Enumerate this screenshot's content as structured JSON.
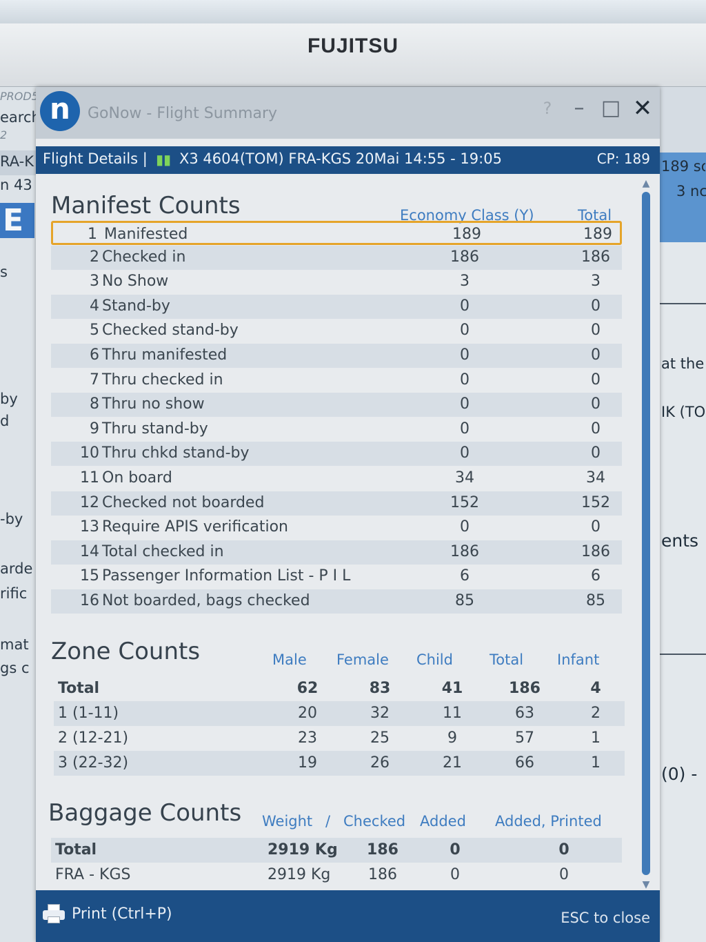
{
  "monitor": {
    "brand": "FUJITSU"
  },
  "background_left": {
    "fragments": [
      "PROD5",
      "earch",
      "2",
      "RA-K",
      "n 43",
      "E",
      "s",
      "by",
      "d",
      "-by",
      "arde",
      "rific",
      "mat",
      "gs c"
    ]
  },
  "background_right": {
    "fragments": [
      "189 so",
      "3 nc",
      "at the",
      "IK (TO",
      "ents (",
      "(0) -"
    ]
  },
  "window": {
    "logo": "n",
    "title": "GoNow - Flight Summary",
    "controls": {
      "help": "?",
      "minimize": "–",
      "maximize": "□",
      "close": "✕"
    }
  },
  "header": {
    "crumb": "Flight Details |",
    "flight": "X3 4604(TOM)   FRA-KGS   20Mai 14:55 - 19:05",
    "cp": "CP: 189"
  },
  "manifest": {
    "title": "Manifest Counts",
    "col_economy": "Economy Class (Y)",
    "col_total": "Total",
    "rows": [
      {
        "num": "1",
        "label": "Manifested",
        "economy": "189",
        "total": "189"
      },
      {
        "num": "2",
        "label": "Checked in",
        "economy": "186",
        "total": "186"
      },
      {
        "num": "3",
        "label": "No Show",
        "economy": "3",
        "total": "3"
      },
      {
        "num": "4",
        "label": "Stand-by",
        "economy": "0",
        "total": "0"
      },
      {
        "num": "5",
        "label": "Checked stand-by",
        "economy": "0",
        "total": "0"
      },
      {
        "num": "6",
        "label": "Thru manifested",
        "economy": "0",
        "total": "0"
      },
      {
        "num": "7",
        "label": "Thru checked in",
        "economy": "0",
        "total": "0"
      },
      {
        "num": "8",
        "label": "Thru no show",
        "economy": "0",
        "total": "0"
      },
      {
        "num": "9",
        "label": "Thru stand-by",
        "economy": "0",
        "total": "0"
      },
      {
        "num": "10",
        "label": "Thru chkd stand-by",
        "economy": "0",
        "total": "0"
      },
      {
        "num": "11",
        "label": "On board",
        "economy": "34",
        "total": "34"
      },
      {
        "num": "12",
        "label": "Checked not boarded",
        "economy": "152",
        "total": "152"
      },
      {
        "num": "13",
        "label": "Require APIS verification",
        "economy": "0",
        "total": "0"
      },
      {
        "num": "14",
        "label": "Total checked in",
        "economy": "186",
        "total": "186"
      },
      {
        "num": "15",
        "label": "Passenger Information List - P I L",
        "economy": "6",
        "total": "6"
      },
      {
        "num": "16",
        "label": "Not boarded, bags checked",
        "economy": "85",
        "total": "85"
      }
    ]
  },
  "zones": {
    "title": "Zone Counts",
    "columns": {
      "male": "Male",
      "female": "Female",
      "child": "Child",
      "total": "Total",
      "infant": "Infant"
    },
    "rows": [
      {
        "label": "Total",
        "male": "62",
        "female": "83",
        "child": "41",
        "total": "186",
        "infant": "4"
      },
      {
        "label": "1 (1-11)",
        "male": "20",
        "female": "32",
        "child": "11",
        "total": "63",
        "infant": "2"
      },
      {
        "label": "2 (12-21)",
        "male": "23",
        "female": "25",
        "child": "9",
        "total": "57",
        "infant": "1"
      },
      {
        "label": "3 (22-32)",
        "male": "19",
        "female": "26",
        "child": "21",
        "total": "66",
        "infant": "1"
      }
    ]
  },
  "baggage": {
    "title": "Baggage Counts",
    "columns": {
      "weight": "Weight",
      "sep": "/",
      "checked": "Checked",
      "added": "Added",
      "added_printed": "Added, Printed"
    },
    "rows": [
      {
        "label": "Total",
        "weight": "2919 Kg",
        "checked": "186",
        "added": "0",
        "added_printed": "0"
      },
      {
        "label": "FRA - KGS",
        "weight": "2919 Kg",
        "checked": "186",
        "added": "0",
        "added_printed": "0"
      }
    ]
  },
  "footer": {
    "print_label": "Print (Ctrl+P)",
    "esc_hint": "ESC to close"
  },
  "colors": {
    "header_blue": "#1c4f86",
    "column_header_blue": "#3e7cc0",
    "selection_orange": "#e5a42a",
    "scroll_thumb": "#3f7ab8"
  }
}
